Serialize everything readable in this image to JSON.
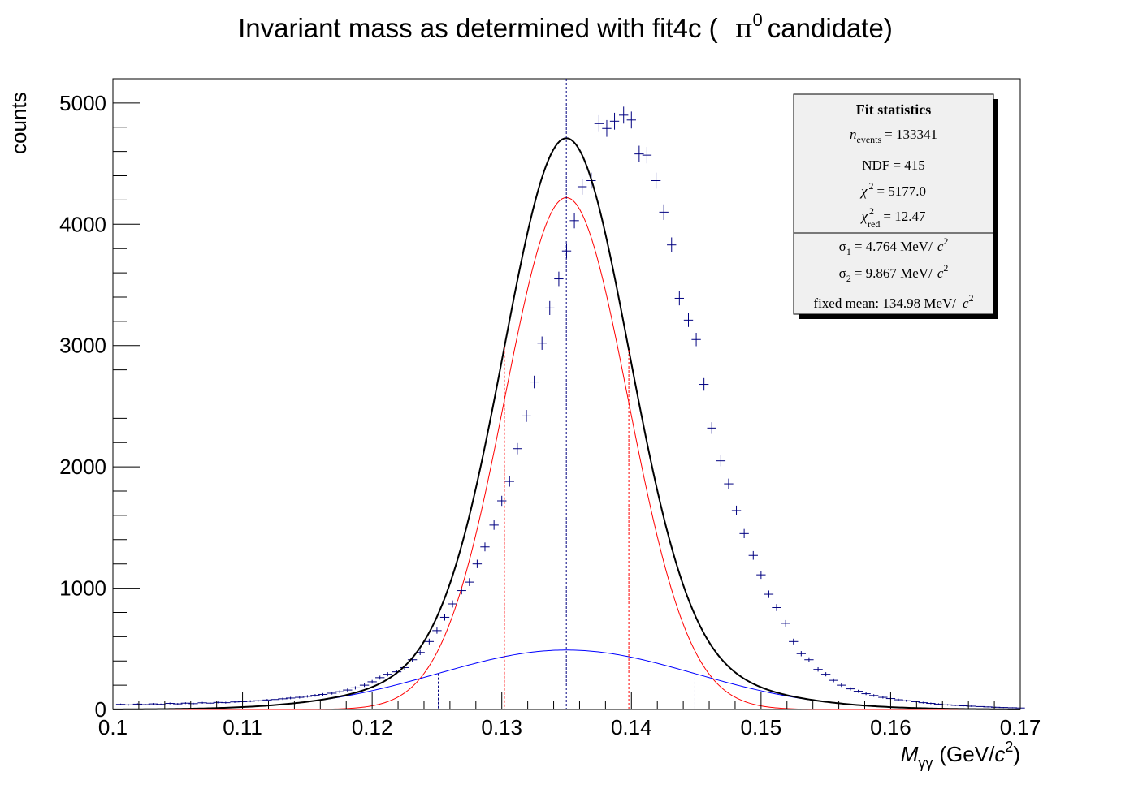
{
  "chart_data": {
    "type": "scatter",
    "title_main": "Invariant mass as determined with fit4c (",
    "title_symbol": "π",
    "title_sup": "0",
    "title_tail": "candidate)",
    "xlabel_sym": "M",
    "xlabel_sub": "γγ",
    "xlabel_unit_open": "(GeV/",
    "xlabel_unit_c": "c",
    "xlabel_unit_sup": "2",
    "xlabel_unit_close": ")",
    "ylabel": "counts",
    "xlim": [
      0.1,
      0.17
    ],
    "ylim": [
      0,
      5200
    ],
    "x_ticks": [
      0.1,
      0.11,
      0.12,
      0.13,
      0.14,
      0.15,
      0.16,
      0.17
    ],
    "x_tick_labels": [
      "0.1",
      "0.11",
      "0.12",
      "0.13",
      "0.14",
      "0.15",
      "0.16",
      "0.17"
    ],
    "y_ticks": [
      0,
      1000,
      2000,
      3000,
      4000,
      5000
    ],
    "y_tick_labels": [
      "0",
      "1000",
      "2000",
      "3000",
      "4000",
      "5000"
    ],
    "data_series": {
      "color": "#000080",
      "points": [
        [
          0.1006,
          42
        ],
        [
          0.1012,
          38
        ],
        [
          0.1019,
          44
        ],
        [
          0.1025,
          40
        ],
        [
          0.1031,
          46
        ],
        [
          0.1037,
          42
        ],
        [
          0.1044,
          50
        ],
        [
          0.105,
          46
        ],
        [
          0.1056,
          52
        ],
        [
          0.1062,
          48
        ],
        [
          0.1069,
          55
        ],
        [
          0.1075,
          52
        ],
        [
          0.1081,
          58
        ],
        [
          0.1087,
          56
        ],
        [
          0.1094,
          62
        ],
        [
          0.11,
          64
        ],
        [
          0.1106,
          68
        ],
        [
          0.1112,
          72
        ],
        [
          0.1119,
          78
        ],
        [
          0.1125,
          82
        ],
        [
          0.1131,
          88
        ],
        [
          0.1137,
          94
        ],
        [
          0.1144,
          100
        ],
        [
          0.115,
          108
        ],
        [
          0.1156,
          116
        ],
        [
          0.1162,
          124
        ],
        [
          0.1169,
          134
        ],
        [
          0.1175,
          146
        ],
        [
          0.1181,
          160
        ],
        [
          0.1187,
          178
        ],
        [
          0.1194,
          200
        ],
        [
          0.12,
          228
        ],
        [
          0.1206,
          262
        ],
        [
          0.1212,
          290
        ],
        [
          0.1219,
          310
        ],
        [
          0.1225,
          345
        ],
        [
          0.1231,
          410
        ],
        [
          0.1237,
          470
        ],
        [
          0.1244,
          560
        ],
        [
          0.125,
          650
        ],
        [
          0.1256,
          760
        ],
        [
          0.1262,
          870
        ],
        [
          0.1269,
          980
        ],
        [
          0.1275,
          1050
        ],
        [
          0.1281,
          1200
        ],
        [
          0.1287,
          1340
        ],
        [
          0.1294,
          1520
        ],
        [
          0.13,
          1720
        ],
        [
          0.1306,
          1880
        ],
        [
          0.1312,
          2150
        ],
        [
          0.1319,
          2420
        ],
        [
          0.1325,
          2700
        ],
        [
          0.1331,
          3020
        ],
        [
          0.1337,
          3310
        ],
        [
          0.1344,
          3550
        ],
        [
          0.135,
          3780
        ],
        [
          0.1356,
          4030
        ],
        [
          0.1362,
          4310
        ],
        [
          0.1369,
          4360
        ],
        [
          0.1375,
          4830
        ],
        [
          0.1381,
          4790
        ],
        [
          0.1387,
          4850
        ],
        [
          0.1394,
          4900
        ],
        [
          0.14,
          4860
        ],
        [
          0.1406,
          4580
        ],
        [
          0.1412,
          4570
        ],
        [
          0.1419,
          4360
        ],
        [
          0.1425,
          4100
        ],
        [
          0.1431,
          3830
        ],
        [
          0.1437,
          3390
        ],
        [
          0.1444,
          3210
        ],
        [
          0.145,
          3050
        ],
        [
          0.1456,
          2680
        ],
        [
          0.1462,
          2320
        ],
        [
          0.1469,
          2050
        ],
        [
          0.1475,
          1860
        ],
        [
          0.1481,
          1640
        ],
        [
          0.1487,
          1450
        ],
        [
          0.1494,
          1270
        ],
        [
          0.15,
          1110
        ],
        [
          0.1506,
          950
        ],
        [
          0.1512,
          840
        ],
        [
          0.1519,
          710
        ],
        [
          0.1525,
          560
        ],
        [
          0.1531,
          460
        ],
        [
          0.1537,
          410
        ],
        [
          0.1544,
          330
        ],
        [
          0.155,
          290
        ],
        [
          0.1556,
          240
        ],
        [
          0.1562,
          200
        ],
        [
          0.1569,
          170
        ],
        [
          0.1575,
          150
        ],
        [
          0.1581,
          130
        ],
        [
          0.1587,
          115
        ],
        [
          0.1594,
          100
        ],
        [
          0.16,
          90
        ],
        [
          0.1606,
          80
        ],
        [
          0.1612,
          72
        ],
        [
          0.1619,
          64
        ],
        [
          0.1625,
          56
        ],
        [
          0.1631,
          50
        ],
        [
          0.1637,
          44
        ],
        [
          0.1644,
          38
        ],
        [
          0.165,
          34
        ],
        [
          0.1656,
          30
        ],
        [
          0.1662,
          27
        ],
        [
          0.1669,
          24
        ],
        [
          0.1675,
          21
        ],
        [
          0.1681,
          18
        ],
        [
          0.1687,
          16
        ],
        [
          0.1694,
          14
        ],
        [
          0.17,
          12
        ]
      ]
    },
    "fit_total": {
      "color": "#000000",
      "mean": 0.13498,
      "narrow": {
        "sigma": 0.004764,
        "amplitude": 4220
      },
      "wide": {
        "sigma": 0.009867,
        "amplitude": 490
      }
    },
    "markers": {
      "mean": 0.13498,
      "narrow_pm": [
        0.1302,
        0.1398
      ],
      "wide_pm": [
        0.1251,
        0.1449
      ]
    },
    "stats_box": {
      "title": "Fit statistics",
      "rows": [
        {
          "sym": "n",
          "sub": "events",
          "text": "= 133341"
        },
        {
          "sym": "",
          "sub": "",
          "text": "NDF = 415"
        },
        {
          "sym": "χ",
          "sup": "2",
          "text": "= 5177.0"
        },
        {
          "sym": "χ",
          "sup": "2",
          "sub": "red",
          "text": "= 12.47"
        },
        {
          "sym": "σ",
          "sub": "1",
          "text": "= 4.764 MeV/",
          "tail": "c",
          "tailsup": "2"
        },
        {
          "sym": "σ",
          "sub": "2",
          "text": "= 9.867 MeV/",
          "tail": "c",
          "tailsup": "2"
        },
        {
          "sym": "",
          "text": "fixed mean: 134.98 MeV/",
          "tail": "c",
          "tailsup": "2"
        }
      ]
    }
  }
}
